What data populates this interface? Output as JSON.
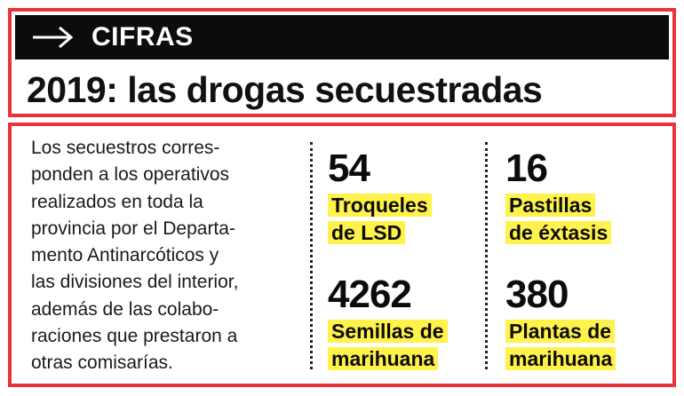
{
  "header": {
    "section_label": "CIFRAS",
    "arrow_icon": "arrow-right-icon",
    "accent_color": "#e8333a",
    "bar_color": "#0c0c0c"
  },
  "title": "2019: las drogas secuestradas",
  "body": {
    "lines": [
      "Los secuestros corres-",
      "ponden a los operativos",
      "realizados en toda la",
      "provincia por el Departa-",
      "mento Antinarcóticos y",
      "las divisiones del interior,",
      "además de las colabo-",
      "raciones que prestaron a",
      "otras comisarías."
    ]
  },
  "stats": [
    {
      "number": "54",
      "label_lines": [
        "Troqueles",
        "de LSD"
      ]
    },
    {
      "number": "16",
      "label_lines": [
        "Pastillas",
        "de éxtasis"
      ]
    },
    {
      "number": "4262",
      "label_lines": [
        "Semillas de",
        "marihuana"
      ]
    },
    {
      "number": "380",
      "label_lines": [
        "Plantas de",
        "marihuana"
      ]
    }
  ],
  "highlight_color": "#fff24a"
}
